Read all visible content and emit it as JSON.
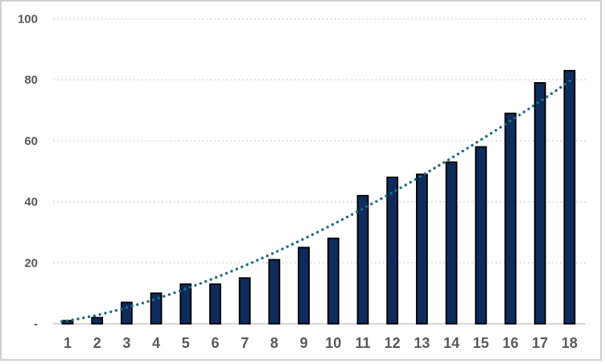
{
  "window": {
    "background_color": "#ffffff",
    "border_color": "#cfcfcf"
  },
  "chart_data": {
    "type": "bar",
    "title": "",
    "xlabel": "",
    "ylabel": "",
    "categories": [
      "1",
      "2",
      "3",
      "4",
      "5",
      "6",
      "7",
      "8",
      "9",
      "10",
      "11",
      "12",
      "13",
      "14",
      "15",
      "16",
      "17",
      "18"
    ],
    "values": [
      1,
      2,
      7,
      10,
      13,
      13,
      15,
      21,
      25,
      28,
      42,
      48,
      49,
      53,
      58,
      69,
      79,
      83
    ],
    "ylim": [
      0,
      100
    ],
    "yticks": [
      {
        "value": 0,
        "label": "-"
      },
      {
        "value": 20,
        "label": "20"
      },
      {
        "value": 40,
        "label": "40"
      },
      {
        "value": 60,
        "label": "60"
      },
      {
        "value": 80,
        "label": "80"
      },
      {
        "value": 100,
        "label": "100"
      }
    ],
    "grid": "horizontal-dotted",
    "legend_position": "none",
    "bar_color": "#0e2b5c",
    "bar_border_color": "#000000",
    "gridline_color": "#d9d9d9",
    "axis_line_color": "#d6d6d6",
    "tick_label_color": "#595959",
    "trendline": {
      "type": "power",
      "a": 1.0,
      "b": 1.514,
      "style": "dotted",
      "color": "#1f6e82",
      "x_start": 0.8,
      "x_end": 18.12
    }
  }
}
